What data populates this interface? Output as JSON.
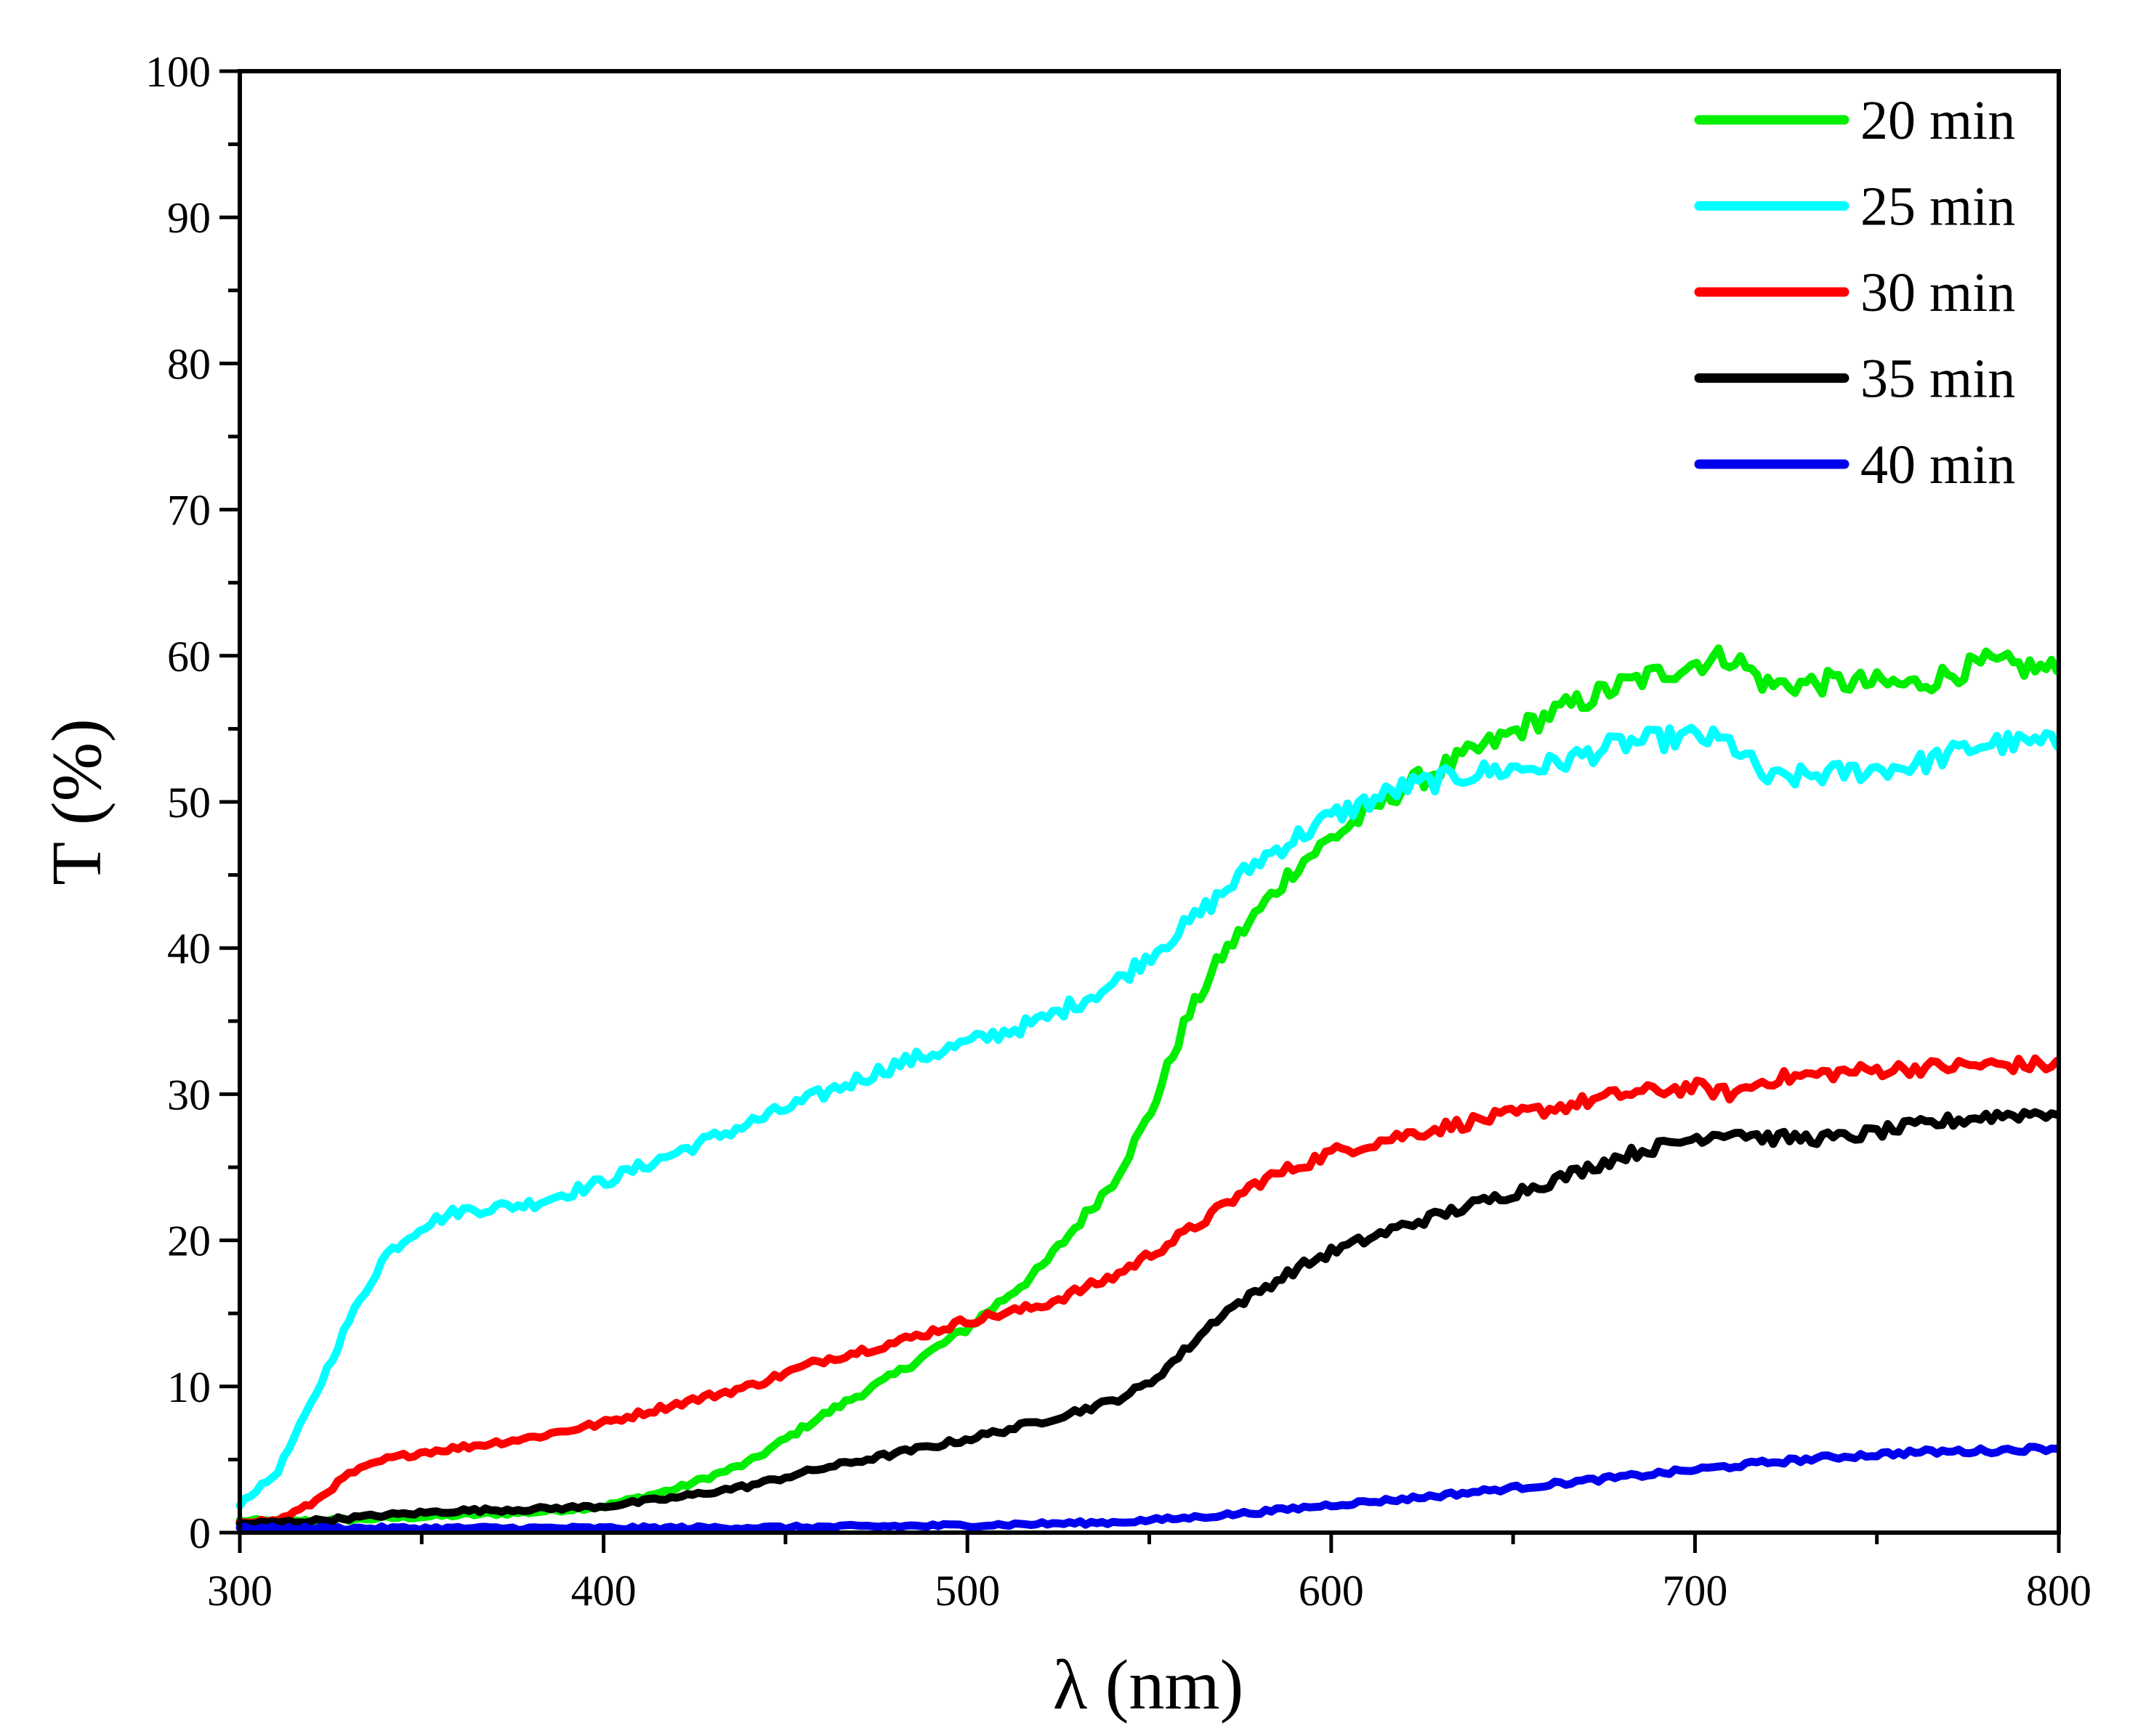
{
  "chart_data": {
    "type": "line",
    "title": "",
    "xlabel": "λ (nm)",
    "ylabel": "T (%)",
    "xlim": [
      300,
      800
    ],
    "ylim": [
      0,
      100
    ],
    "xticks": [
      300,
      400,
      500,
      600,
      700,
      800
    ],
    "yticks": [
      0,
      10,
      20,
      30,
      40,
      50,
      60,
      70,
      80,
      90,
      100
    ],
    "x_minor_step": 50,
    "y_minor_step": 5,
    "grid": false,
    "legend_position": "top-right",
    "series": [
      {
        "name": "20 min",
        "color": "#00ee00",
        "x": [
          300,
          320,
          340,
          360,
          380,
          400,
          420,
          440,
          460,
          480,
          500,
          520,
          540,
          550,
          560,
          570,
          580,
          590,
          600,
          620,
          640,
          660,
          680,
          700,
          710,
          720,
          740,
          760,
          780,
          800
        ],
        "y": [
          0.8,
          0.8,
          1.0,
          1.2,
          1.4,
          1.8,
          3.0,
          4.8,
          8.0,
          10.8,
          14.0,
          18.0,
          24.0,
          28.5,
          35.0,
          39.5,
          42.5,
          45.5,
          47.5,
          51.0,
          53.5,
          56.0,
          58.0,
          59.5,
          60.0,
          58.0,
          58.2,
          58.0,
          59.5,
          59.0
        ]
      },
      {
        "name": "25 min",
        "color": "#00ffff",
        "x": [
          300,
          310,
          320,
          330,
          340,
          350,
          360,
          380,
          400,
          420,
          440,
          460,
          480,
          500,
          520,
          540,
          560,
          580,
          600,
          620,
          640,
          660,
          680,
          700,
          710,
          720,
          740,
          760,
          780,
          800
        ],
        "y": [
          2.0,
          4.0,
          9.0,
          14.5,
          19.0,
          21.0,
          22.0,
          22.5,
          24.0,
          26.0,
          28.0,
          30.0,
          32.0,
          33.5,
          35.0,
          37.5,
          41.5,
          46.0,
          49.0,
          51.0,
          52.0,
          52.5,
          54.0,
          54.5,
          54.0,
          51.5,
          52.0,
          52.5,
          54.0,
          54.0
        ]
      },
      {
        "name": "30 min",
        "color": "#ff0000",
        "x": [
          300,
          310,
          320,
          330,
          340,
          350,
          360,
          380,
          400,
          420,
          440,
          460,
          480,
          500,
          520,
          540,
          560,
          580,
          600,
          620,
          640,
          660,
          680,
          700,
          710,
          720,
          740,
          760,
          780,
          800
        ],
        "y": [
          0.8,
          0.8,
          2.0,
          4.0,
          5.0,
          5.5,
          5.8,
          6.5,
          7.5,
          8.8,
          10.0,
          11.8,
          13.0,
          14.5,
          15.5,
          17.5,
          20.5,
          24.0,
          26.0,
          27.2,
          28.2,
          29.0,
          30.0,
          30.5,
          30.0,
          31.0,
          31.5,
          31.8,
          32.0,
          32.0
        ]
      },
      {
        "name": "35 min",
        "color": "#000000",
        "x": [
          300,
          320,
          340,
          360,
          380,
          400,
          420,
          440,
          460,
          480,
          500,
          520,
          540,
          550,
          560,
          570,
          580,
          590,
          600,
          620,
          640,
          660,
          680,
          700,
          710,
          720,
          740,
          760,
          780,
          800
        ],
        "y": [
          0.6,
          0.8,
          1.2,
          1.5,
          1.6,
          1.8,
          2.4,
          3.2,
          4.4,
          5.4,
          6.4,
          7.6,
          9.0,
          10.2,
          12.5,
          15.0,
          16.5,
          18.0,
          19.2,
          21.0,
          22.5,
          24.0,
          25.8,
          27.0,
          27.5,
          27.0,
          27.0,
          27.8,
          28.5,
          28.8
        ]
      },
      {
        "name": "40 min",
        "color": "#0000ee",
        "x": [
          300,
          350,
          400,
          450,
          500,
          540,
          560,
          580,
          600,
          620,
          640,
          660,
          680,
          700,
          720,
          740,
          760,
          780,
          800
        ],
        "y": [
          0.3,
          0.3,
          0.3,
          0.35,
          0.5,
          0.7,
          1.0,
          1.4,
          1.9,
          2.3,
          2.8,
          3.3,
          3.8,
          4.3,
          4.8,
          5.2,
          5.5,
          5.6,
          5.8
        ]
      }
    ]
  }
}
